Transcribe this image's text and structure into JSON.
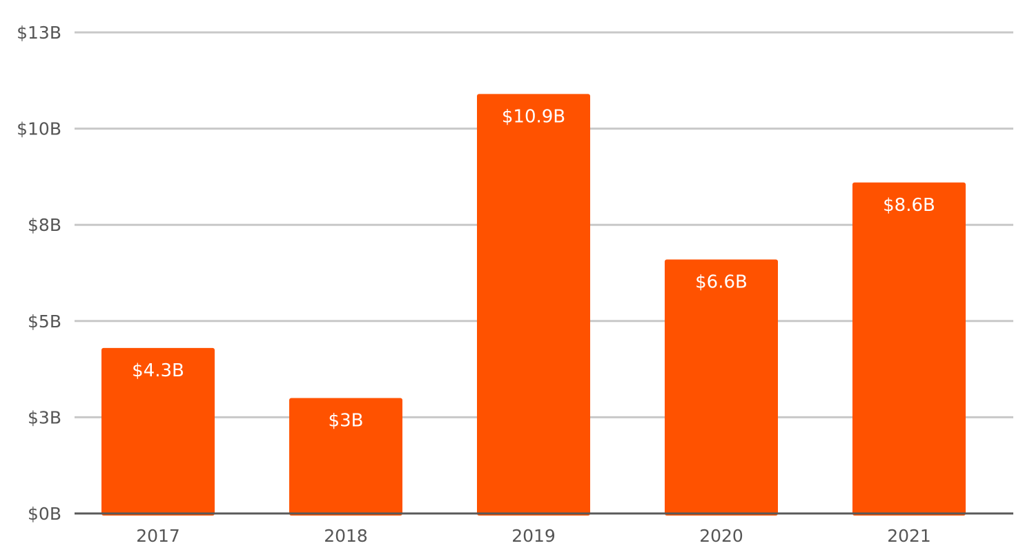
{
  "chart_data": {
    "type": "bar",
    "categories": [
      "2017",
      "2018",
      "2019",
      "2020",
      "2021"
    ],
    "values": [
      4.3,
      3.0,
      10.9,
      6.6,
      8.6
    ],
    "data_labels": [
      "$4.3B",
      "$3B",
      "$10.9B",
      "$6.6B",
      "$8.6B"
    ],
    "yticks": [
      0,
      2.5,
      5,
      7.5,
      10,
      12.5
    ],
    "ytick_labels": [
      "$0B",
      "$3B",
      "$5B",
      "$8B",
      "$10B",
      "$13B"
    ],
    "ylim": [
      0,
      12.5
    ],
    "title": "",
    "xlabel": "",
    "ylabel": "",
    "grid": true,
    "legend": "none",
    "colors": {
      "bar": "#ff5200",
      "grid": "#c8c8c8",
      "axis": "#595959",
      "tick_text": "#555555",
      "data_label_text": "#ffffff"
    }
  }
}
